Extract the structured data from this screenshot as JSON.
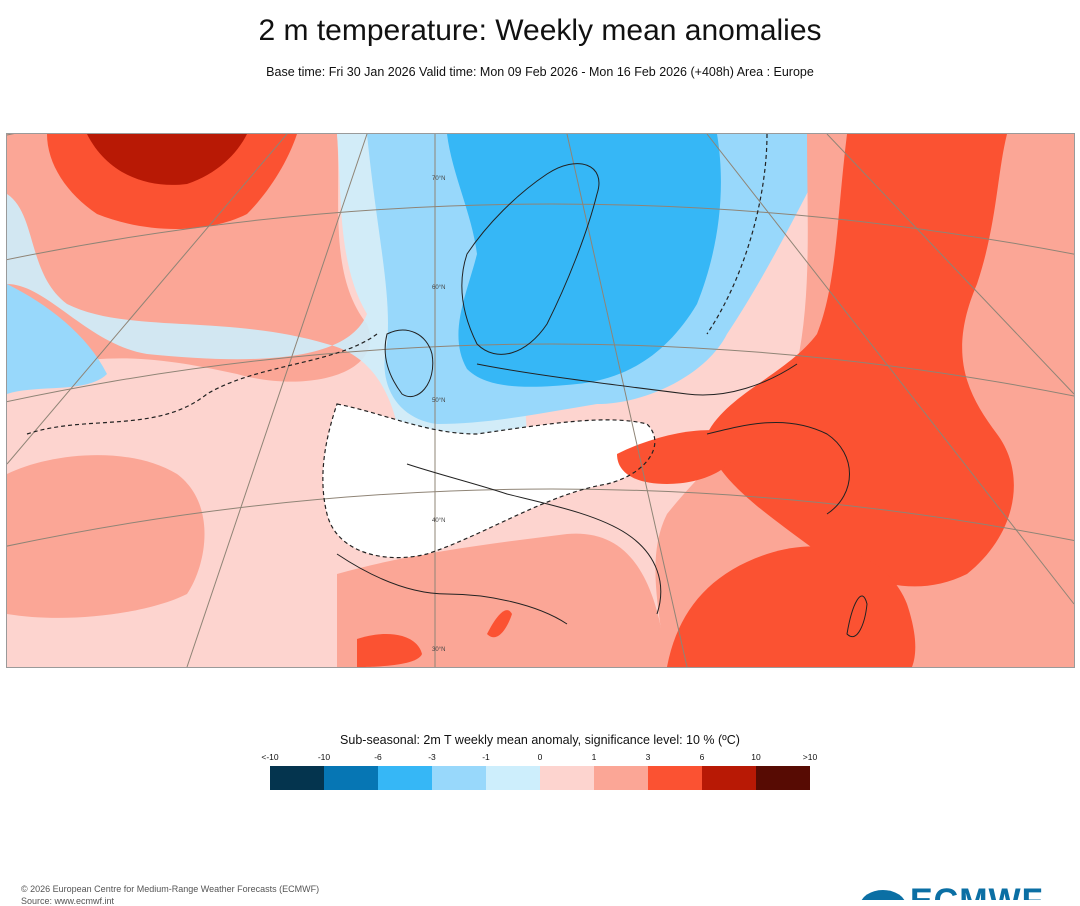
{
  "title": "2 m temperature: Weekly mean anomalies",
  "subtitle": "Base time: Fri 30 Jan 2026 Valid time: Mon 09 Feb 2026 - Mon 16 Feb 2026 (+408h) Area : Europe",
  "map": {
    "area": "Europe",
    "lat_labels": [
      "70°N",
      "60°N",
      "50°N",
      "40°N",
      "30°N"
    ],
    "fill_colors": {
      "minus6_to_minus3": "#36b7f6",
      "minus3_to_minus1": "#98d8fb",
      "minus1_to_0": "#cdeefc",
      "zero_to_1": "#fdd4cf",
      "one_to_3": "#fba696",
      "three_to_6": "#fb5232",
      "six_to_10": "#b81905",
      "land_outline": "#222222",
      "graticule": "#8f8476"
    }
  },
  "legend": {
    "title": "Sub-seasonal: 2m T weekly mean anomaly, significance level: 10 % (ºC)",
    "labels": [
      "<-10",
      "-10",
      "-6",
      "-3",
      "-1",
      "0",
      "1",
      "3",
      "6",
      "10",
      ">10"
    ],
    "colors": [
      "#04344e",
      "#0676b4",
      "#36b7f6",
      "#98d8fb",
      "#cdeefc",
      "#fdd4cf",
      "#fba696",
      "#fb5232",
      "#b81905",
      "#570b03"
    ]
  },
  "footer": {
    "copyright": "© 2026 European Centre for Medium-Range Weather Forecasts (ECMWF)",
    "source": "Source: www.ecmwf.int",
    "logo_text": "ECMWF"
  }
}
